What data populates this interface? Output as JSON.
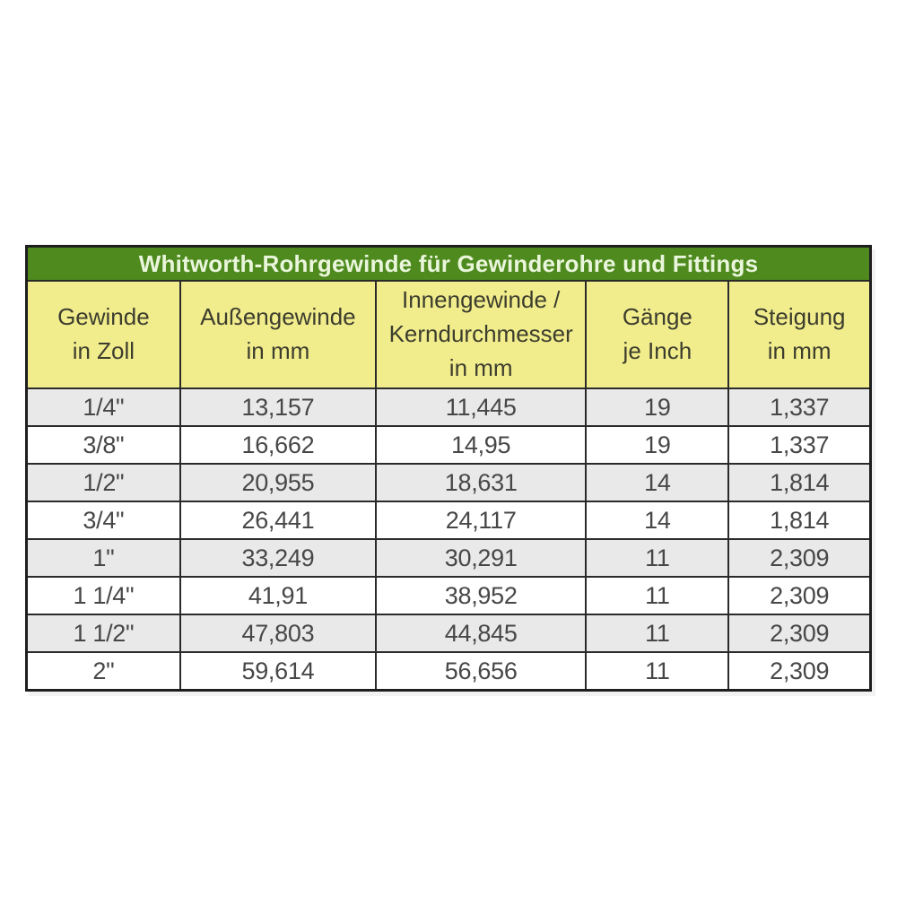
{
  "title": "Whitworth-Rohrgewinde für Gewinderohre und Fittings",
  "columns": [
    "Gewinde\nin Zoll",
    "Außengewinde\nin mm",
    "Innengewinde /\nKerndurchmesser\nin mm",
    "Gänge\nje Inch",
    "Steigung\nin mm"
  ],
  "rows": [
    [
      "1/4\"",
      "13,157",
      "11,445",
      "19",
      "1,337"
    ],
    [
      "3/8\"",
      "16,662",
      "14,95",
      "19",
      "1,337"
    ],
    [
      "1/2\"",
      "20,955",
      "18,631",
      "14",
      "1,814"
    ],
    [
      "3/4\"",
      "26,441",
      "24,117",
      "14",
      "1,814"
    ],
    [
      "1\"",
      "33,249",
      "30,291",
      "11",
      "2,309"
    ],
    [
      "1 1/4\"",
      "41,91",
      "38,952",
      "11",
      "2,309"
    ],
    [
      "1 1/2\"",
      "47,803",
      "44,845",
      "11",
      "2,309"
    ],
    [
      "2\"",
      "59,614",
      "56,656",
      "11",
      "2,309"
    ]
  ],
  "colors": {
    "title_bg": "#4e8a1d",
    "title_text": "#eaf6dc",
    "header_bg": "#f1ed8d",
    "header_text": "#3d3d2e",
    "row_gray": "#e9e9e9",
    "row_white": "#ffffff",
    "cell_text": "#474747",
    "border": "#2a2a2a"
  },
  "chart_data": {
    "type": "table",
    "title": "Whitworth-Rohrgewinde für Gewinderohre und Fittings",
    "columns": [
      "Gewinde in Zoll",
      "Außengewinde in mm",
      "Innengewinde / Kerndurchmesser in mm",
      "Gänge je Inch",
      "Steigung in mm"
    ],
    "rows": [
      [
        "1/4\"",
        13.157,
        11.445,
        19,
        1.337
      ],
      [
        "3/8\"",
        16.662,
        14.95,
        19,
        1.337
      ],
      [
        "1/2\"",
        20.955,
        18.631,
        14,
        1.814
      ],
      [
        "3/4\"",
        26.441,
        24.117,
        14,
        1.814
      ],
      [
        "1\"",
        33.249,
        30.291,
        11,
        2.309
      ],
      [
        "1 1/4\"",
        41.91,
        38.952,
        11,
        2.309
      ],
      [
        "1 1/2\"",
        47.803,
        44.845,
        11,
        2.309
      ],
      [
        "2\"",
        59.614,
        56.656,
        11,
        2.309
      ]
    ],
    "decimal_separator": ",",
    "layout": "title bar green, header row yellow, body rows alternate gray/white starting gray"
  }
}
